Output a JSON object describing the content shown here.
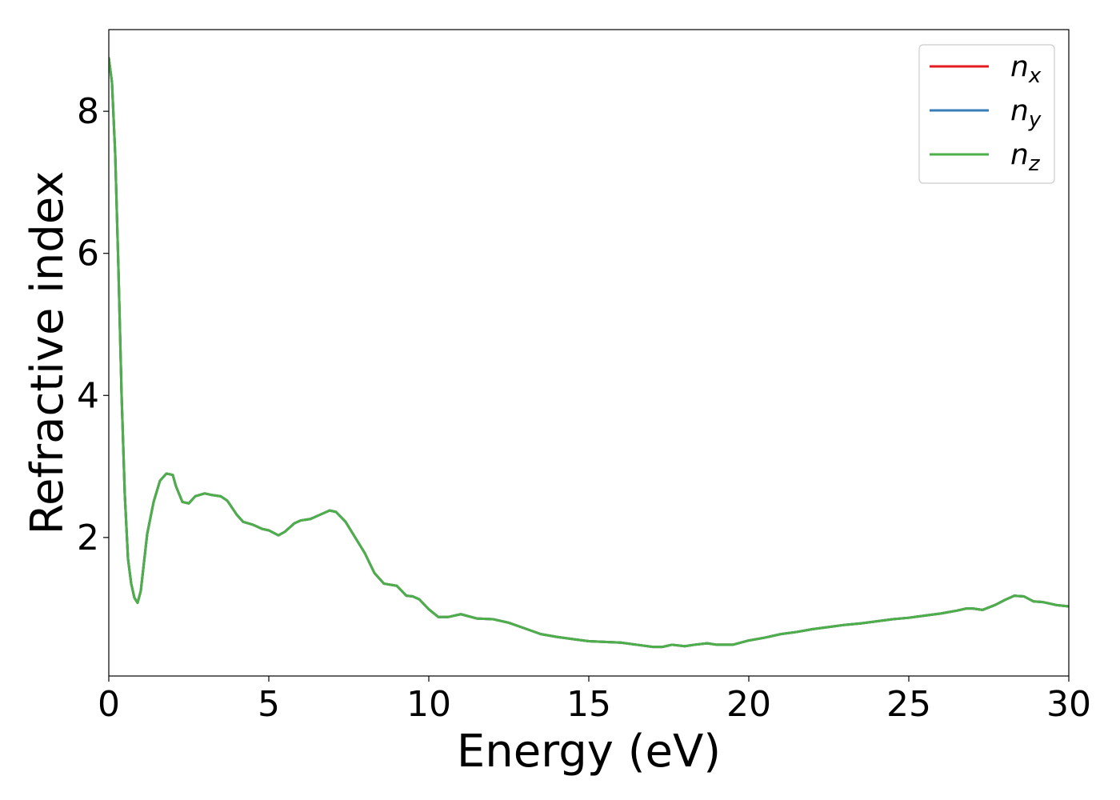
{
  "chart_data": {
    "type": "line",
    "title": "",
    "xlabel": "Energy (eV)",
    "ylabel": "Refractive index",
    "xlim": [
      0,
      30
    ],
    "ylim": [
      0.05,
      9.15
    ],
    "xticks": [
      0,
      5,
      10,
      15,
      20,
      25,
      30
    ],
    "yticks": [
      2,
      4,
      6,
      8
    ],
    "grid": false,
    "legend_position": "top-right",
    "series": [
      {
        "name": "n_x",
        "symbol": "n",
        "subscript": "x",
        "color": "#e41a1c",
        "x": [
          0,
          0.1,
          0.2,
          0.3,
          0.4,
          0.5,
          0.6,
          0.7,
          0.8,
          0.9,
          1.0,
          1.2,
          1.4,
          1.6,
          1.8,
          2.0,
          2.1,
          2.3,
          2.5,
          2.7,
          3.0,
          3.2,
          3.5,
          3.7,
          4.0,
          4.2,
          4.5,
          4.8,
          5.0,
          5.3,
          5.5,
          5.8,
          6.0,
          6.3,
          6.6,
          6.9,
          7.1,
          7.4,
          7.7,
          8.0,
          8.3,
          8.6,
          9.0,
          9.3,
          9.5,
          9.7,
          10.0,
          10.3,
          10.6,
          11.0,
          11.5,
          12.0,
          12.5,
          13.0,
          13.5,
          14.0,
          14.5,
          15.0,
          15.5,
          16.0,
          16.5,
          17.0,
          17.3,
          17.6,
          18.0,
          18.3,
          18.7,
          19.0,
          19.5,
          20.0,
          20.5,
          21.0,
          21.5,
          22.0,
          22.5,
          23.0,
          23.5,
          24.0,
          24.5,
          25.0,
          25.5,
          26.0,
          26.5,
          26.8,
          27.0,
          27.3,
          27.7,
          28.0,
          28.3,
          28.6,
          28.9,
          29.2,
          29.6,
          30.0
        ],
        "y": [
          8.75,
          8.4,
          7.4,
          5.8,
          4.0,
          2.6,
          1.7,
          1.35,
          1.15,
          1.08,
          1.25,
          2.05,
          2.5,
          2.8,
          2.9,
          2.88,
          2.72,
          2.5,
          2.48,
          2.58,
          2.62,
          2.6,
          2.58,
          2.52,
          2.32,
          2.22,
          2.18,
          2.12,
          2.1,
          2.03,
          2.08,
          2.2,
          2.24,
          2.26,
          2.32,
          2.38,
          2.36,
          2.22,
          2.0,
          1.78,
          1.5,
          1.35,
          1.32,
          1.18,
          1.17,
          1.13,
          0.99,
          0.88,
          0.88,
          0.92,
          0.86,
          0.85,
          0.8,
          0.72,
          0.64,
          0.6,
          0.57,
          0.54,
          0.53,
          0.52,
          0.49,
          0.46,
          0.46,
          0.49,
          0.47,
          0.49,
          0.51,
          0.49,
          0.49,
          0.55,
          0.59,
          0.64,
          0.67,
          0.71,
          0.74,
          0.77,
          0.79,
          0.82,
          0.85,
          0.87,
          0.9,
          0.93,
          0.97,
          1.0,
          1.0,
          0.98,
          1.05,
          1.12,
          1.18,
          1.17,
          1.1,
          1.09,
          1.05,
          1.03
        ]
      },
      {
        "name": "n_y",
        "symbol": "n",
        "subscript": "y",
        "color": "#377eb8",
        "x": [
          0,
          0.1,
          0.2,
          0.3,
          0.4,
          0.5,
          0.6,
          0.7,
          0.8,
          0.9,
          1.0,
          1.2,
          1.4,
          1.6,
          1.8,
          2.0,
          2.1,
          2.3,
          2.5,
          2.7,
          3.0,
          3.2,
          3.5,
          3.7,
          4.0,
          4.2,
          4.5,
          4.8,
          5.0,
          5.3,
          5.5,
          5.8,
          6.0,
          6.3,
          6.6,
          6.9,
          7.1,
          7.4,
          7.7,
          8.0,
          8.3,
          8.6,
          9.0,
          9.3,
          9.5,
          9.7,
          10.0,
          10.3,
          10.6,
          11.0,
          11.5,
          12.0,
          12.5,
          13.0,
          13.5,
          14.0,
          14.5,
          15.0,
          15.5,
          16.0,
          16.5,
          17.0,
          17.3,
          17.6,
          18.0,
          18.3,
          18.7,
          19.0,
          19.5,
          20.0,
          20.5,
          21.0,
          21.5,
          22.0,
          22.5,
          23.0,
          23.5,
          24.0,
          24.5,
          25.0,
          25.5,
          26.0,
          26.5,
          26.8,
          27.0,
          27.3,
          27.7,
          28.0,
          28.3,
          28.6,
          28.9,
          29.2,
          29.6,
          30.0
        ],
        "y": [
          8.75,
          8.4,
          7.4,
          5.8,
          4.0,
          2.6,
          1.7,
          1.35,
          1.15,
          1.08,
          1.25,
          2.05,
          2.5,
          2.8,
          2.9,
          2.88,
          2.72,
          2.5,
          2.48,
          2.58,
          2.62,
          2.6,
          2.58,
          2.52,
          2.32,
          2.22,
          2.18,
          2.12,
          2.1,
          2.03,
          2.08,
          2.2,
          2.24,
          2.26,
          2.32,
          2.38,
          2.36,
          2.22,
          2.0,
          1.78,
          1.5,
          1.35,
          1.32,
          1.18,
          1.17,
          1.13,
          0.99,
          0.88,
          0.88,
          0.92,
          0.86,
          0.85,
          0.8,
          0.72,
          0.64,
          0.6,
          0.57,
          0.54,
          0.53,
          0.52,
          0.49,
          0.46,
          0.46,
          0.49,
          0.47,
          0.49,
          0.51,
          0.49,
          0.49,
          0.55,
          0.59,
          0.64,
          0.67,
          0.71,
          0.74,
          0.77,
          0.79,
          0.82,
          0.85,
          0.87,
          0.9,
          0.93,
          0.97,
          1.0,
          1.0,
          0.98,
          1.05,
          1.12,
          1.18,
          1.17,
          1.1,
          1.09,
          1.05,
          1.03
        ]
      },
      {
        "name": "n_z",
        "symbol": "n",
        "subscript": "z",
        "color": "#4daf4a",
        "x": [
          0,
          0.1,
          0.2,
          0.3,
          0.4,
          0.5,
          0.6,
          0.7,
          0.8,
          0.9,
          1.0,
          1.2,
          1.4,
          1.6,
          1.8,
          2.0,
          2.1,
          2.3,
          2.5,
          2.7,
          3.0,
          3.2,
          3.5,
          3.7,
          4.0,
          4.2,
          4.5,
          4.8,
          5.0,
          5.3,
          5.5,
          5.8,
          6.0,
          6.3,
          6.6,
          6.9,
          7.1,
          7.4,
          7.7,
          8.0,
          8.3,
          8.6,
          9.0,
          9.3,
          9.5,
          9.7,
          10.0,
          10.3,
          10.6,
          11.0,
          11.5,
          12.0,
          12.5,
          13.0,
          13.5,
          14.0,
          14.5,
          15.0,
          15.5,
          16.0,
          16.5,
          17.0,
          17.3,
          17.6,
          18.0,
          18.3,
          18.7,
          19.0,
          19.5,
          20.0,
          20.5,
          21.0,
          21.5,
          22.0,
          22.5,
          23.0,
          23.5,
          24.0,
          24.5,
          25.0,
          25.5,
          26.0,
          26.5,
          26.8,
          27.0,
          27.3,
          27.7,
          28.0,
          28.3,
          28.6,
          28.9,
          29.2,
          29.6,
          30.0
        ],
        "y": [
          8.75,
          8.4,
          7.4,
          5.8,
          4.0,
          2.6,
          1.7,
          1.35,
          1.15,
          1.08,
          1.25,
          2.05,
          2.5,
          2.8,
          2.9,
          2.88,
          2.72,
          2.5,
          2.48,
          2.58,
          2.62,
          2.6,
          2.58,
          2.52,
          2.32,
          2.22,
          2.18,
          2.12,
          2.1,
          2.03,
          2.08,
          2.2,
          2.24,
          2.26,
          2.32,
          2.38,
          2.36,
          2.22,
          2.0,
          1.78,
          1.5,
          1.35,
          1.32,
          1.18,
          1.17,
          1.13,
          0.99,
          0.88,
          0.88,
          0.92,
          0.86,
          0.85,
          0.8,
          0.72,
          0.64,
          0.6,
          0.57,
          0.54,
          0.53,
          0.52,
          0.49,
          0.46,
          0.46,
          0.49,
          0.47,
          0.49,
          0.51,
          0.49,
          0.49,
          0.55,
          0.59,
          0.64,
          0.67,
          0.71,
          0.74,
          0.77,
          0.79,
          0.82,
          0.85,
          0.87,
          0.9,
          0.93,
          0.97,
          1.0,
          1.0,
          0.98,
          1.05,
          1.12,
          1.18,
          1.17,
          1.1,
          1.09,
          1.05,
          1.03
        ]
      }
    ]
  }
}
